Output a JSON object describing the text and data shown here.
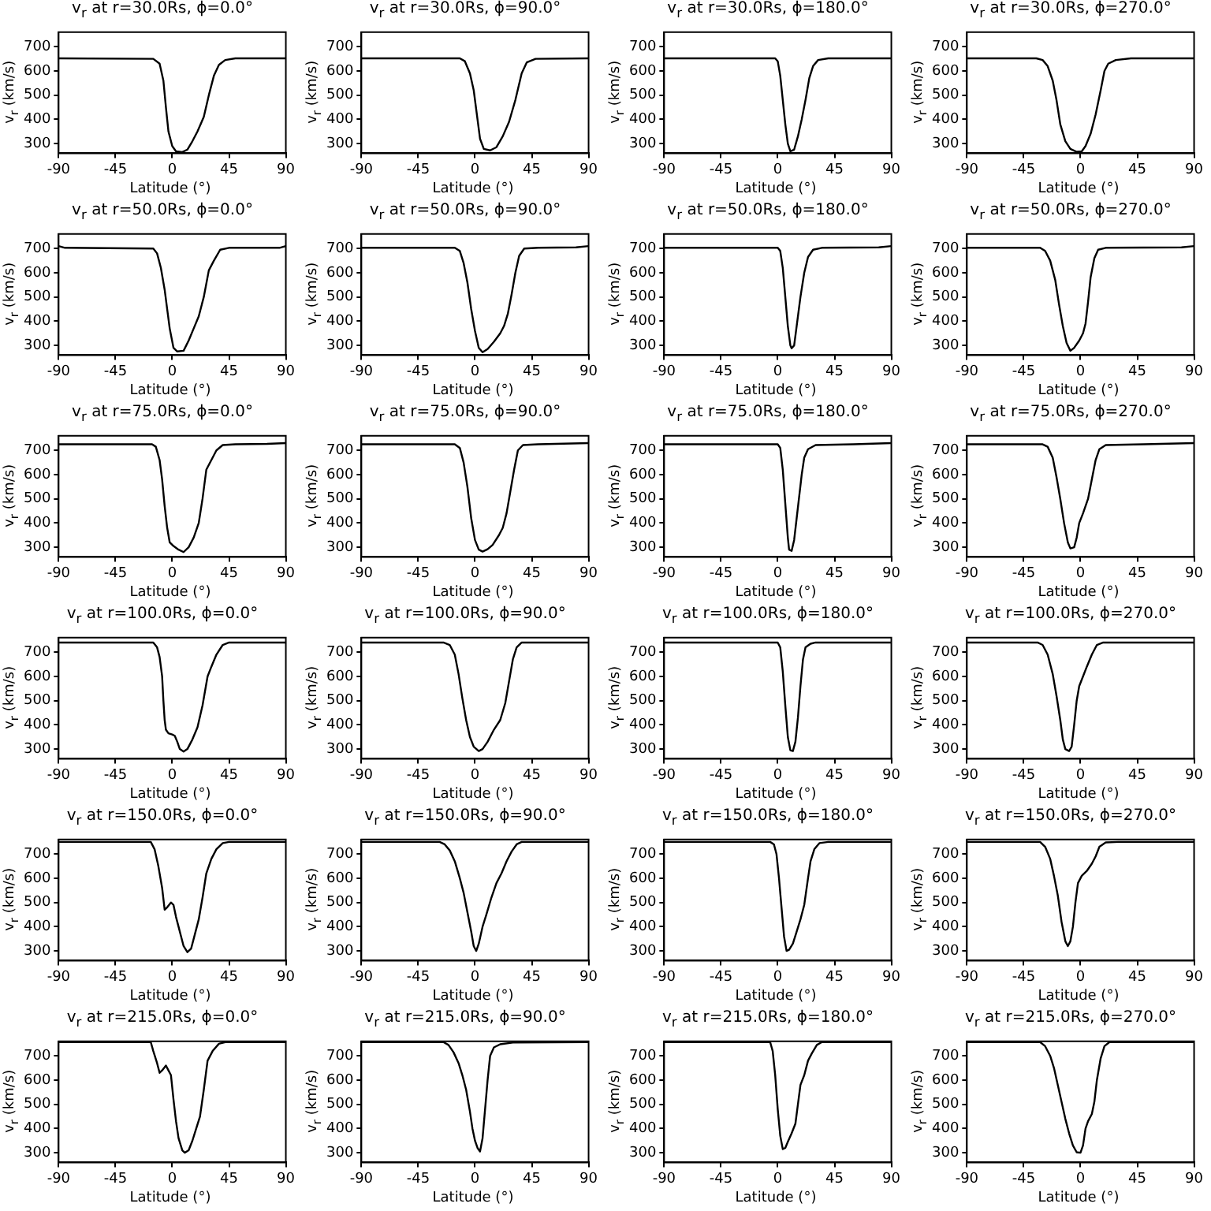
{
  "chart_data": [
    {
      "type": "line",
      "title": "v$_{r}$ at r=30.0Rs, ϕ=0.0°",
      "xlabel": "Latitude (°)",
      "ylabel": "v$_{r}$ (km/s)",
      "xlim": [
        -90,
        90
      ],
      "xticks": [
        -90,
        -45,
        0,
        45,
        90
      ],
      "ylim": [
        260,
        760
      ],
      "yticks": [
        300,
        400,
        500,
        600,
        700
      ],
      "color": "#000000",
      "x": [
        -90,
        -15,
        -10,
        -7,
        -5,
        -3,
        0,
        3,
        8,
        12,
        16,
        20,
        25,
        29,
        33,
        37,
        42,
        50,
        90
      ],
      "values": [
        652,
        650,
        630,
        560,
        450,
        350,
        290,
        268,
        265,
        275,
        310,
        350,
        410,
        500,
        580,
        625,
        645,
        652,
        652
      ]
    },
    {
      "type": "line",
      "title": "v$_{r}$ at r=30.0Rs, ϕ=90.0°",
      "xlabel": "Latitude (°)",
      "ylabel": "v$_{r}$ (km/s)",
      "xlim": [
        -90,
        90
      ],
      "xticks": [
        -90,
        -45,
        0,
        45,
        90
      ],
      "ylim": [
        260,
        760
      ],
      "yticks": [
        300,
        400,
        500,
        600,
        700
      ],
      "color": "#000000",
      "x": [
        -90,
        -12,
        -8,
        -4,
        -1,
        2,
        4,
        7,
        12,
        17,
        22,
        27,
        32,
        37,
        41,
        48,
        90
      ],
      "values": [
        652,
        652,
        640,
        590,
        520,
        400,
        320,
        278,
        272,
        285,
        330,
        390,
        480,
        590,
        635,
        650,
        652
      ]
    },
    {
      "type": "line",
      "title": "v$_{r}$ at r=30.0Rs, ϕ=180.0°",
      "xlabel": "Latitude (°)",
      "ylabel": "v$_{r}$ (km/s)",
      "xlim": [
        -90,
        90
      ],
      "xticks": [
        -90,
        -45,
        0,
        45,
        90
      ],
      "ylim": [
        260,
        760
      ],
      "yticks": [
        300,
        400,
        500,
        600,
        700
      ],
      "color": "#000000",
      "x": [
        -90,
        -2,
        0,
        2,
        4,
        6,
        8,
        10,
        13,
        16,
        19,
        22,
        25,
        28,
        32,
        40,
        90
      ],
      "values": [
        652,
        652,
        640,
        580,
        480,
        380,
        300,
        268,
        275,
        330,
        400,
        480,
        570,
        620,
        645,
        652,
        652
      ]
    },
    {
      "type": "line",
      "title": "v$_{r}$ at r=30.0Rs, ϕ=270.0°",
      "xlabel": "Latitude (°)",
      "ylabel": "v$_{r}$ (km/s)",
      "xlim": [
        -90,
        90
      ],
      "xticks": [
        -90,
        -45,
        0,
        45,
        90
      ],
      "ylim": [
        260,
        760
      ],
      "yticks": [
        300,
        400,
        500,
        600,
        700
      ],
      "color": "#000000",
      "x": [
        -90,
        -35,
        -30,
        -26,
        -22,
        -19,
        -16,
        -12,
        -8,
        -3,
        1,
        4,
        8,
        12,
        16,
        19,
        22,
        28,
        40,
        90
      ],
      "values": [
        652,
        652,
        645,
        620,
        560,
        480,
        380,
        310,
        278,
        266,
        268,
        290,
        340,
        420,
        520,
        600,
        630,
        645,
        652,
        652
      ]
    },
    {
      "type": "line",
      "title": "v$_{r}$ at r=50.0Rs, ϕ=0.0°",
      "xlabel": "Latitude (°)",
      "ylabel": "v$_{r}$ (km/s)",
      "xlim": [
        -90,
        90
      ],
      "xticks": [
        -90,
        -45,
        0,
        45,
        90
      ],
      "ylim": [
        260,
        760
      ],
      "yticks": [
        300,
        400,
        500,
        600,
        700
      ],
      "color": "#000000",
      "x": [
        -90,
        -85,
        -15,
        -12,
        -9,
        -6,
        -4,
        -2,
        1,
        4,
        9,
        13,
        17,
        21,
        25,
        29,
        33,
        38,
        45,
        85,
        90
      ],
      "values": [
        710,
        703,
        700,
        680,
        620,
        530,
        450,
        370,
        290,
        275,
        278,
        320,
        370,
        420,
        500,
        610,
        650,
        695,
        703,
        703,
        710
      ]
    },
    {
      "type": "line",
      "title": "v$_{r}$ at r=50.0Rs, ϕ=90.0°",
      "xlabel": "Latitude (°)",
      "ylabel": "v$_{r}$ (km/s)",
      "xlim": [
        -90,
        90
      ],
      "xticks": [
        -90,
        -45,
        0,
        45,
        90
      ],
      "ylim": [
        260,
        760
      ],
      "yticks": [
        300,
        400,
        500,
        600,
        700
      ],
      "color": "#000000",
      "x": [
        -90,
        -16,
        -12,
        -9,
        -6,
        -3,
        0,
        3,
        6,
        10,
        15,
        20,
        23,
        26,
        29,
        32,
        35,
        39,
        50,
        80,
        90
      ],
      "values": [
        703,
        703,
        690,
        640,
        560,
        450,
        360,
        290,
        272,
        285,
        315,
        350,
        380,
        430,
        510,
        600,
        670,
        700,
        703,
        705,
        710
      ]
    },
    {
      "type": "line",
      "title": "v$_{r}$ at r=50.0Rs, ϕ=180.0°",
      "xlabel": "Latitude (°)",
      "ylabel": "v$_{r}$ (km/s)",
      "xlim": [
        -90,
        90
      ],
      "xticks": [
        -90,
        -45,
        0,
        45,
        90
      ],
      "ylim": [
        260,
        760
      ],
      "yticks": [
        300,
        400,
        500,
        600,
        700
      ],
      "color": "#000000",
      "x": [
        -90,
        0,
        2,
        4,
        6,
        8,
        10,
        11,
        13,
        15,
        18,
        21,
        24,
        28,
        35,
        80,
        90
      ],
      "values": [
        703,
        703,
        690,
        620,
        500,
        380,
        300,
        288,
        300,
        380,
        500,
        600,
        665,
        695,
        703,
        705,
        710
      ]
    },
    {
      "type": "line",
      "title": "v$_{r}$ at r=50.0Rs, ϕ=270.0°",
      "xlabel": "Latitude (°)",
      "ylabel": "v$_{r}$ (km/s)",
      "xlim": [
        -90,
        90
      ],
      "xticks": [
        -90,
        -45,
        0,
        45,
        90
      ],
      "ylim": [
        260,
        760
      ],
      "yticks": [
        300,
        400,
        500,
        600,
        700
      ],
      "color": "#000000",
      "x": [
        -90,
        -32,
        -28,
        -24,
        -20,
        -17,
        -14,
        -11,
        -8,
        -5,
        -1,
        2,
        4,
        6,
        8,
        11,
        14,
        20,
        80,
        90
      ],
      "values": [
        703,
        703,
        690,
        650,
        570,
        470,
        380,
        310,
        278,
        290,
        320,
        350,
        390,
        480,
        580,
        660,
        695,
        703,
        705,
        710
      ]
    },
    {
      "type": "line",
      "title": "v$_{r}$ at r=75.0Rs, ϕ=0.0°",
      "xlabel": "Latitude (°)",
      "ylabel": "v$_{r}$ (km/s)",
      "xlim": [
        -90,
        90
      ],
      "xticks": [
        -90,
        -45,
        0,
        45,
        90
      ],
      "ylim": [
        260,
        760
      ],
      "yticks": [
        300,
        400,
        500,
        600,
        700
      ],
      "color": "#000000",
      "x": [
        -90,
        -16,
        -13,
        -10,
        -8,
        -6,
        -4,
        -2,
        1,
        5,
        9,
        13,
        17,
        21,
        24,
        27,
        31,
        35,
        40,
        50,
        75,
        90
      ],
      "values": [
        725,
        725,
        715,
        660,
        580,
        470,
        380,
        320,
        305,
        290,
        280,
        300,
        340,
        400,
        500,
        620,
        660,
        700,
        722,
        725,
        727,
        730
      ]
    },
    {
      "type": "line",
      "title": "v$_{r}$ at r=75.0Rs, ϕ=90.0°",
      "xlabel": "Latitude (°)",
      "ylabel": "v$_{r}$ (km/s)",
      "xlim": [
        -90,
        90
      ],
      "xticks": [
        -90,
        -45,
        0,
        45,
        90
      ],
      "ylim": [
        260,
        760
      ],
      "yticks": [
        300,
        400,
        500,
        600,
        700
      ],
      "color": "#000000",
      "x": [
        -90,
        -16,
        -12,
        -9,
        -6,
        -3,
        0,
        3,
        6,
        10,
        14,
        19,
        22,
        25,
        28,
        31,
        34,
        38,
        50,
        90
      ],
      "values": [
        725,
        725,
        710,
        650,
        550,
        420,
        330,
        290,
        282,
        292,
        310,
        350,
        380,
        440,
        530,
        620,
        700,
        722,
        725,
        730
      ]
    },
    {
      "type": "line",
      "title": "v$_{r}$ at r=75.0Rs, ϕ=180.0°",
      "xlabel": "Latitude (°)",
      "ylabel": "v$_{r}$ (km/s)",
      "xlim": [
        -90,
        90
      ],
      "xticks": [
        -90,
        -45,
        0,
        45,
        90
      ],
      "ylim": [
        260,
        760
      ],
      "yticks": [
        300,
        400,
        500,
        600,
        700
      ],
      "color": "#000000",
      "x": [
        -90,
        0,
        2,
        4,
        6,
        8,
        9,
        11,
        13,
        15,
        17,
        19,
        21,
        24,
        30,
        60,
        90
      ],
      "values": [
        725,
        725,
        710,
        620,
        480,
        340,
        290,
        285,
        330,
        420,
        510,
        600,
        670,
        705,
        722,
        725,
        730
      ]
    },
    {
      "type": "line",
      "title": "v$_{r}$ at r=75.0Rs, ϕ=270.0°",
      "xlabel": "Latitude (°)",
      "ylabel": "v$_{r}$ (km/s)",
      "xlim": [
        -90,
        90
      ],
      "xticks": [
        -90,
        -45,
        0,
        45,
        90
      ],
      "ylim": [
        260,
        760
      ],
      "yticks": [
        300,
        400,
        500,
        600,
        700
      ],
      "color": "#000000",
      "x": [
        -90,
        -30,
        -26,
        -22,
        -19,
        -16,
        -13,
        -10,
        -8,
        -5,
        -3,
        -1,
        2,
        6,
        9,
        12,
        15,
        20,
        50,
        90
      ],
      "values": [
        725,
        725,
        715,
        670,
        590,
        500,
        400,
        320,
        295,
        300,
        340,
        400,
        440,
        500,
        580,
        660,
        705,
        722,
        725,
        730
      ]
    },
    {
      "type": "line",
      "title": "v$_{r}$ at r=100.0Rs, ϕ=0.0°",
      "xlabel": "Latitude (°)",
      "ylabel": "v$_{r}$ (km/s)",
      "xlim": [
        -90,
        90
      ],
      "xticks": [
        -90,
        -45,
        0,
        45,
        90
      ],
      "ylim": [
        260,
        760
      ],
      "yticks": [
        300,
        400,
        500,
        600,
        700
      ],
      "color": "#000000",
      "x": [
        -90,
        -15,
        -12,
        -10,
        -8,
        -7,
        -6,
        -5,
        -3,
        0,
        2,
        4,
        6,
        9,
        12,
        16,
        20,
        24,
        28,
        31,
        35,
        40,
        45,
        90
      ],
      "values": [
        740,
        740,
        720,
        680,
        600,
        500,
        420,
        380,
        365,
        360,
        355,
        330,
        300,
        290,
        300,
        340,
        390,
        480,
        600,
        640,
        690,
        730,
        740,
        740
      ]
    },
    {
      "type": "line",
      "title": "v$_{r}$ at r=100.0Rs, ϕ=90.0°",
      "xlabel": "Latitude (°)",
      "ylabel": "v$_{r}$ (km/s)",
      "xlim": [
        -90,
        90
      ],
      "xticks": [
        -90,
        -45,
        0,
        45,
        90
      ],
      "ylim": [
        260,
        760
      ],
      "yticks": [
        300,
        400,
        500,
        600,
        700
      ],
      "color": "#000000",
      "x": [
        -90,
        -25,
        -20,
        -16,
        -13,
        -10,
        -7,
        -4,
        -1,
        3,
        6,
        10,
        15,
        20,
        24,
        27,
        30,
        33,
        37,
        90
      ],
      "values": [
        740,
        740,
        730,
        690,
        610,
        510,
        420,
        350,
        310,
        292,
        300,
        330,
        380,
        420,
        490,
        580,
        670,
        720,
        740,
        740
      ]
    },
    {
      "type": "line",
      "title": "v$_{r}$ at r=100.0Rs, ϕ=180.0°",
      "xlabel": "Latitude (°)",
      "ylabel": "v$_{r}$ (km/s)",
      "xlim": [
        -90,
        90
      ],
      "xticks": [
        -90,
        -45,
        0,
        45,
        90
      ],
      "ylim": [
        260,
        760
      ],
      "yticks": [
        300,
        400,
        500,
        600,
        700
      ],
      "color": "#000000",
      "x": [
        -90,
        0,
        2,
        4,
        6,
        8,
        10,
        12,
        14,
        16,
        18,
        20,
        22,
        26,
        30,
        90
      ],
      "values": [
        740,
        740,
        720,
        620,
        480,
        350,
        295,
        292,
        330,
        430,
        560,
        670,
        720,
        735,
        740,
        740
      ]
    },
    {
      "type": "line",
      "title": "v$_{r}$ at r=100.0Rs, ϕ=270.0°",
      "xlabel": "Latitude (°)",
      "ylabel": "v$_{r}$ (km/s)",
      "xlim": [
        -90,
        90
      ],
      "xticks": [
        -90,
        -45,
        0,
        45,
        90
      ],
      "ylim": [
        260,
        760
      ],
      "yticks": [
        300,
        400,
        500,
        600,
        700
      ],
      "color": "#000000",
      "x": [
        -90,
        -34,
        -30,
        -26,
        -22,
        -19,
        -16,
        -14,
        -12,
        -9,
        -7,
        -5,
        -3,
        -1,
        2,
        5,
        9,
        13,
        18,
        90
      ],
      "values": [
        740,
        740,
        730,
        690,
        610,
        520,
        420,
        340,
        300,
        292,
        310,
        400,
        500,
        560,
        600,
        640,
        690,
        730,
        740,
        740
      ]
    },
    {
      "type": "line",
      "title": "v$_{r}$ at r=150.0Rs, ϕ=0.0°",
      "xlabel": "Latitude (°)",
      "ylabel": "v$_{r}$ (km/s)",
      "xlim": [
        -90,
        90
      ],
      "xticks": [
        -90,
        -45,
        0,
        45,
        90
      ],
      "ylim": [
        260,
        760
      ],
      "yticks": [
        300,
        400,
        500,
        600,
        700
      ],
      "color": "#000000",
      "x": [
        -90,
        -17,
        -14,
        -11,
        -8,
        -6,
        -4,
        -1,
        1,
        3,
        5,
        7,
        9,
        12,
        15,
        18,
        21,
        24,
        27,
        31,
        35,
        40,
        45,
        90
      ],
      "values": [
        750,
        750,
        720,
        650,
        560,
        470,
        480,
        500,
        490,
        440,
        400,
        360,
        320,
        295,
        310,
        370,
        430,
        520,
        620,
        680,
        720,
        745,
        750,
        750
      ]
    },
    {
      "type": "line",
      "title": "v$_{r}$ at r=150.0Rs, ϕ=90.0°",
      "xlabel": "Latitude (°)",
      "ylabel": "v$_{r}$ (km/s)",
      "xlim": [
        -90,
        90
      ],
      "xticks": [
        -90,
        -45,
        0,
        45,
        90
      ],
      "ylim": [
        260,
        760
      ],
      "yticks": [
        300,
        400,
        500,
        600,
        700
      ],
      "color": "#000000",
      "x": [
        -90,
        -28,
        -24,
        -20,
        -16,
        -12,
        -9,
        -6,
        -3,
        -1,
        1,
        3,
        6,
        9,
        13,
        17,
        21,
        25,
        29,
        33,
        37,
        90
      ],
      "values": [
        750,
        750,
        740,
        715,
        670,
        600,
        540,
        460,
        380,
        320,
        300,
        330,
        400,
        450,
        520,
        580,
        620,
        670,
        710,
        740,
        750,
        750
      ]
    },
    {
      "type": "line",
      "title": "v$_{r}$ at r=150.0Rs, ϕ=180.0°",
      "xlabel": "Latitude (°)",
      "ylabel": "v$_{r}$ (km/s)",
      "xlim": [
        -90,
        90
      ],
      "xticks": [
        -90,
        -45,
        0,
        45,
        90
      ],
      "ylim": [
        260,
        760
      ],
      "yticks": [
        300,
        400,
        500,
        600,
        700
      ],
      "color": "#000000",
      "x": [
        -90,
        -6,
        -3,
        -1,
        1,
        3,
        5,
        7,
        9,
        12,
        15,
        18,
        21,
        24,
        26,
        29,
        33,
        40,
        90
      ],
      "values": [
        750,
        750,
        740,
        700,
        600,
        480,
        360,
        300,
        305,
        330,
        380,
        430,
        490,
        600,
        670,
        720,
        745,
        750,
        750
      ]
    },
    {
      "type": "line",
      "title": "v$_{r}$ at r=150.0Rs, ϕ=270.0°",
      "xlabel": "Latitude (°)",
      "ylabel": "v$_{r}$ (km/s)",
      "xlim": [
        -90,
        90
      ],
      "xticks": [
        -90,
        -45,
        0,
        45,
        90
      ],
      "ylim": [
        260,
        760
      ],
      "yticks": [
        300,
        400,
        500,
        600,
        700
      ],
      "color": "#000000",
      "x": [
        -90,
        -32,
        -28,
        -24,
        -21,
        -18,
        -15,
        -12,
        -10,
        -8,
        -6,
        -4,
        -2,
        1,
        5,
        9,
        12,
        15,
        20,
        30,
        90
      ],
      "values": [
        750,
        750,
        730,
        680,
        610,
        530,
        420,
        340,
        320,
        340,
        400,
        500,
        580,
        610,
        630,
        660,
        690,
        730,
        748,
        750,
        750
      ]
    },
    {
      "type": "line",
      "title": "v$_{r}$ at r=215.0Rs, ϕ=0.0°",
      "xlabel": "Latitude (°)",
      "ylabel": "v$_{r}$ (km/s)",
      "xlim": [
        -90,
        90
      ],
      "xticks": [
        -90,
        -45,
        0,
        45,
        90
      ],
      "ylim": [
        260,
        760
      ],
      "yticks": [
        300,
        400,
        500,
        600,
        700
      ],
      "color": "#000000",
      "x": [
        -90,
        -17,
        -15,
        -12,
        -10,
        -8,
        -5,
        -3,
        -1,
        1,
        3,
        5,
        8,
        10,
        13,
        16,
        19,
        22,
        25,
        28,
        32,
        37,
        42,
        90
      ],
      "values": [
        757,
        757,
        720,
        670,
        630,
        640,
        660,
        640,
        620,
        520,
        430,
        360,
        310,
        300,
        310,
        350,
        400,
        450,
        560,
        680,
        720,
        750,
        757,
        757
      ]
    },
    {
      "type": "line",
      "title": "v$_{r}$ at r=215.0Rs, ϕ=90.0°",
      "xlabel": "Latitude (°)",
      "ylabel": "v$_{r}$ (km/s)",
      "xlim": [
        -90,
        90
      ],
      "xticks": [
        -90,
        -45,
        0,
        45,
        90
      ],
      "ylim": [
        260,
        760
      ],
      "yticks": [
        300,
        400,
        500,
        600,
        700
      ],
      "color": "#000000",
      "x": [
        -90,
        -25,
        -21,
        -17,
        -13,
        -10,
        -7,
        -4,
        -2,
        0,
        2,
        4,
        6,
        8,
        10,
        12,
        15,
        20,
        30,
        90
      ],
      "values": [
        757,
        757,
        745,
        715,
        670,
        620,
        560,
        470,
        400,
        350,
        320,
        305,
        360,
        480,
        600,
        700,
        735,
        748,
        755,
        757
      ]
    },
    {
      "type": "line",
      "title": "v$_{r}$ at r=215.0Rs, ϕ=180.0°",
      "xlabel": "Latitude (°)",
      "ylabel": "v$_{r}$ (km/s)",
      "xlim": [
        -90,
        90
      ],
      "xticks": [
        -90,
        -45,
        0,
        45,
        90
      ],
      "ylim": [
        260,
        760
      ],
      "yticks": [
        300,
        400,
        500,
        600,
        700
      ],
      "color": "#000000",
      "x": [
        -90,
        -6,
        -4,
        -2,
        0,
        2,
        4,
        6,
        8,
        11,
        14,
        16,
        18,
        21,
        24,
        27,
        31,
        35,
        90
      ],
      "values": [
        757,
        757,
        720,
        620,
        480,
        370,
        315,
        320,
        345,
        380,
        420,
        500,
        580,
        620,
        680,
        710,
        745,
        757,
        757
      ]
    },
    {
      "type": "line",
      "title": "v$_{r}$ at r=215.0Rs, ϕ=270.0°",
      "xlabel": "Latitude (°)",
      "ylabel": "v$_{r}$ (km/s)",
      "xlim": [
        -90,
        90
      ],
      "xticks": [
        -90,
        -45,
        0,
        45,
        90
      ],
      "ylim": [
        260,
        760
      ],
      "yticks": [
        300,
        400,
        500,
        600,
        700
      ],
      "color": "#000000",
      "x": [
        -90,
        -32,
        -28,
        -24,
        -21,
        -18,
        -15,
        -12,
        -9,
        -6,
        -3,
        0,
        2,
        4,
        6,
        9,
        11,
        13,
        16,
        19,
        23,
        90
      ],
      "values": [
        757,
        757,
        740,
        700,
        650,
        580,
        510,
        440,
        380,
        330,
        302,
        300,
        330,
        400,
        430,
        460,
        510,
        600,
        690,
        740,
        757,
        757
      ]
    }
  ]
}
